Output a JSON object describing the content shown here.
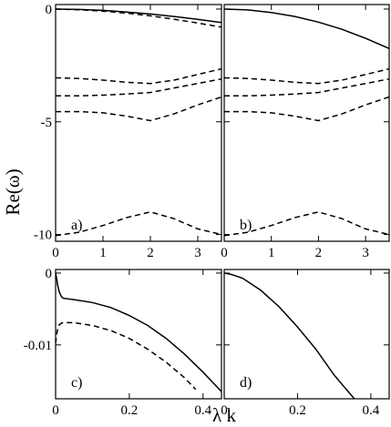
{
  "chart_data": {
    "type": "line",
    "ylabel": "Re(ω)",
    "xlabel": "λ k",
    "panels": [
      {
        "id": "a",
        "label": "a)",
        "xlim": [
          0,
          3.5
        ],
        "ylim": [
          -10.3,
          0.2
        ],
        "xticks": [
          0,
          1,
          2,
          3
        ],
        "xtick_labels": [
          "0",
          "1",
          "2",
          "3"
        ],
        "yticks": [
          0,
          -5,
          -10
        ],
        "ytick_labels": [
          "0",
          "-5",
          "-10"
        ],
        "series": [
          {
            "style": "solid",
            "x": [
              0,
              0.5,
              1.0,
              1.5,
              2.0,
              2.5,
              3.0,
              3.5
            ],
            "y": [
              0,
              -0.02,
              -0.06,
              -0.13,
              -0.22,
              -0.33,
              -0.46,
              -0.6
            ]
          },
          {
            "style": "dashed",
            "x": [
              0,
              0.5,
              1.0,
              1.5,
              2.0,
              2.5,
              3.0,
              3.5
            ],
            "y": [
              0,
              -0.03,
              -0.09,
              -0.18,
              -0.3,
              -0.45,
              -0.62,
              -0.8
            ]
          },
          {
            "style": "dashed",
            "x": [
              0,
              0.5,
              1.0,
              1.5,
              2.0,
              2.5,
              3.0,
              3.5
            ],
            "y": [
              -3.05,
              -3.08,
              -3.15,
              -3.25,
              -3.3,
              -3.15,
              -2.9,
              -2.65
            ]
          },
          {
            "style": "dashed",
            "x": [
              0,
              0.5,
              1.0,
              1.5,
              2.0,
              2.5,
              3.0,
              3.5
            ],
            "y": [
              -3.85,
              -3.85,
              -3.82,
              -3.77,
              -3.7,
              -3.5,
              -3.3,
              -3.1
            ]
          },
          {
            "style": "dashed",
            "x": [
              0,
              0.5,
              1.0,
              1.5,
              2.0,
              2.5,
              3.0,
              3.5
            ],
            "y": [
              -4.55,
              -4.55,
              -4.6,
              -4.75,
              -4.95,
              -4.65,
              -4.25,
              -3.9
            ]
          },
          {
            "style": "dashed",
            "x": [
              0,
              0.5,
              1.0,
              1.5,
              2.0,
              2.5,
              3.0,
              3.5
            ],
            "y": [
              -10.05,
              -9.9,
              -9.6,
              -9.25,
              -9.0,
              -9.3,
              -9.75,
              -10.0
            ]
          }
        ]
      },
      {
        "id": "b",
        "label": "b)",
        "xlim": [
          0,
          3.5
        ],
        "ylim": [
          -10.3,
          0.2
        ],
        "xticks": [
          0,
          1,
          2,
          3
        ],
        "xtick_labels": [
          "0",
          "1",
          "2",
          "3"
        ],
        "yticks": [
          0,
          -5,
          -10
        ],
        "ytick_labels": [],
        "series": [
          {
            "style": "solid",
            "x": [
              0,
              0.5,
              1.0,
              1.5,
              2.0,
              2.5,
              3.0,
              3.5
            ],
            "y": [
              0,
              -0.04,
              -0.15,
              -0.33,
              -0.58,
              -0.9,
              -1.3,
              -1.75
            ]
          },
          {
            "style": "dashed",
            "x": [
              0,
              0.5,
              1.0,
              1.5,
              2.0,
              2.5,
              3.0,
              3.5
            ],
            "y": [
              -3.05,
              -3.08,
              -3.15,
              -3.25,
              -3.3,
              -3.15,
              -2.9,
              -2.65
            ]
          },
          {
            "style": "dashed",
            "x": [
              0,
              0.5,
              1.0,
              1.5,
              2.0,
              2.5,
              3.0,
              3.5
            ],
            "y": [
              -3.85,
              -3.85,
              -3.82,
              -3.77,
              -3.7,
              -3.5,
              -3.3,
              -3.1
            ]
          },
          {
            "style": "dashed",
            "x": [
              0,
              0.5,
              1.0,
              1.5,
              2.0,
              2.5,
              3.0,
              3.5
            ],
            "y": [
              -4.55,
              -4.55,
              -4.6,
              -4.75,
              -4.95,
              -4.65,
              -4.25,
              -3.9
            ]
          },
          {
            "style": "dashed",
            "x": [
              0,
              0.5,
              1.0,
              1.5,
              2.0,
              2.5,
              3.0,
              3.5
            ],
            "y": [
              -10.05,
              -9.9,
              -9.6,
              -9.25,
              -9.0,
              -9.3,
              -9.75,
              -10.0
            ]
          }
        ]
      },
      {
        "id": "c",
        "label": "c)",
        "xlim": [
          0,
          0.45
        ],
        "ylim": [
          -0.0175,
          0.0005
        ],
        "xticks": [
          0,
          0.2,
          0.4
        ],
        "xtick_labels": [
          "0",
          "0.2",
          "0.4"
        ],
        "yticks": [
          0,
          -0.01
        ],
        "ytick_labels": [
          "0",
          "-0.01"
        ],
        "series": [
          {
            "style": "solid",
            "x": [
              0,
              0.003,
              0.006,
              0.01,
              0.015,
              0.02,
              0.05,
              0.1,
              0.15,
              0.2,
              0.25,
              0.3,
              0.35,
              0.4,
              0.45
            ],
            "y": [
              0,
              -0.0008,
              -0.0018,
              -0.0026,
              -0.0032,
              -0.0035,
              -0.0037,
              -0.0041,
              -0.0048,
              -0.0059,
              -0.0073,
              -0.0091,
              -0.0113,
              -0.0138,
              -0.0165
            ]
          },
          {
            "style": "dashed",
            "x": [
              0,
              0.003,
              0.006,
              0.01,
              0.015,
              0.02,
              0.05,
              0.1,
              0.15,
              0.2,
              0.25,
              0.3,
              0.35,
              0.38
            ],
            "y": [
              -0.0098,
              -0.0085,
              -0.0077,
              -0.0072,
              -0.007,
              -0.0069,
              -0.0069,
              -0.0073,
              -0.008,
              -0.0091,
              -0.0106,
              -0.0124,
              -0.0146,
              -0.0162
            ]
          }
        ]
      },
      {
        "id": "d",
        "label": "d)",
        "xlim": [
          0,
          0.45
        ],
        "ylim": [
          -0.0175,
          0.0005
        ],
        "xticks": [
          0,
          0.2,
          0.4
        ],
        "xtick_labels": [
          "0",
          "0.2",
          "0.4"
        ],
        "yticks": [
          0,
          -0.01
        ],
        "ytick_labels": [],
        "series": [
          {
            "style": "solid",
            "x": [
              0,
              0.02,
              0.05,
              0.1,
              0.15,
              0.2,
              0.25,
              0.3,
              0.33,
              0.355
            ],
            "y": [
              0,
              -0.0002,
              -0.0007,
              -0.0024,
              -0.0047,
              -0.0075,
              -0.0106,
              -0.0142,
              -0.016,
              -0.0175
            ]
          }
        ]
      }
    ]
  }
}
